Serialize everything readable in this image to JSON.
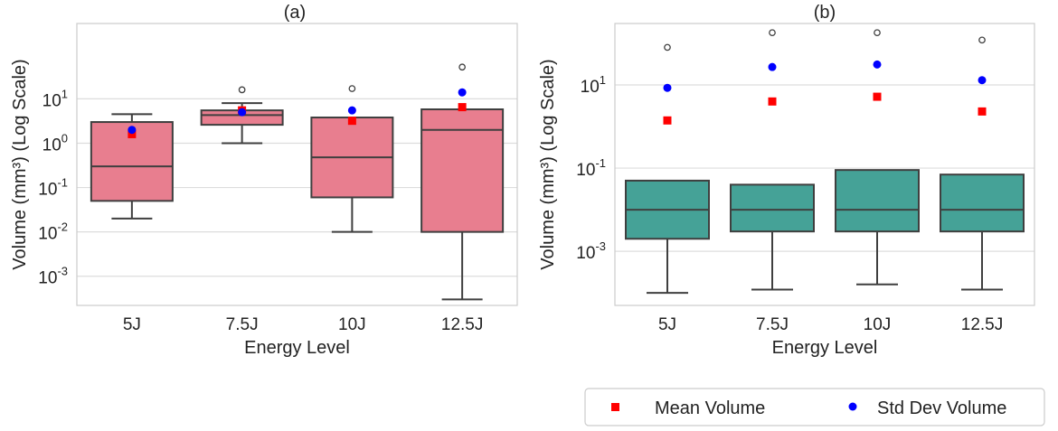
{
  "chart_data": [
    {
      "type": "box",
      "title": "(a)",
      "xlabel": "Energy Level",
      "ylabel": "Volume (mm³) (Log Scale)",
      "yscale": "log",
      "ylim": [
        0.00022,
        500
      ],
      "yticks": [
        {
          "value": 0.001,
          "base": "10",
          "exp": "-3"
        },
        {
          "value": 0.01,
          "base": "10",
          "exp": "-2"
        },
        {
          "value": 0.1,
          "base": "10",
          "exp": "-1"
        },
        {
          "value": 1,
          "base": "10",
          "exp": "0"
        },
        {
          "value": 10,
          "base": "10",
          "exp": "1"
        }
      ],
      "box_color": "#e87e8f",
      "categories": [
        "5J",
        "7.5J",
        "10J",
        "12.5J"
      ],
      "boxes": [
        {
          "whisker_low": 0.02,
          "q1": 0.05,
          "median": 0.3,
          "q3": 3.0,
          "whisker_high": 4.5,
          "outliers": []
        },
        {
          "whisker_low": 1.0,
          "q1": 2.6,
          "median": 4.3,
          "q3": 5.5,
          "whisker_high": 8.0,
          "outliers": [
            16
          ]
        },
        {
          "whisker_low": 0.01,
          "q1": 0.06,
          "median": 0.48,
          "q3": 3.8,
          "whisker_high": 3.8,
          "outliers": [
            17
          ]
        },
        {
          "whisker_low": 0.0003,
          "q1": 0.01,
          "median": 2.0,
          "q3": 5.8,
          "whisker_high": 5.8,
          "outliers": [
            52
          ]
        }
      ],
      "mean": [
        1.6,
        5.5,
        3.2,
        6.5
      ],
      "std": [
        2.0,
        5.0,
        5.5,
        14.0
      ]
    },
    {
      "type": "box",
      "title": "(b)",
      "xlabel": "Energy Level",
      "ylabel": "Volume (mm³) (Log Scale)",
      "yscale": "log",
      "ylim": [
        5e-05,
        300
      ],
      "yticks": [
        {
          "value": 0.001,
          "base": "10",
          "exp": "-3"
        },
        {
          "value": 0.1,
          "base": "10",
          "exp": "-1"
        },
        {
          "value": 10,
          "base": "10",
          "exp": "1"
        }
      ],
      "box_color": "#45a297",
      "categories": [
        "5J",
        "7.5J",
        "10J",
        "12.5J"
      ],
      "boxes": [
        {
          "whisker_low": 0.0001,
          "q1": 0.002,
          "median": 0.01,
          "q3": 0.05,
          "whisker_high": 0.05,
          "outliers": [
            80
          ]
        },
        {
          "whisker_low": 0.00012,
          "q1": 0.003,
          "median": 0.01,
          "q3": 0.04,
          "whisker_high": 0.04,
          "outliers": [
            180
          ]
        },
        {
          "whisker_low": 0.00016,
          "q1": 0.003,
          "median": 0.01,
          "q3": 0.09,
          "whisker_high": 0.09,
          "outliers": [
            180
          ]
        },
        {
          "whisker_low": 0.00012,
          "q1": 0.003,
          "median": 0.01,
          "q3": 0.07,
          "whisker_high": 0.07,
          "outliers": [
            120
          ]
        }
      ],
      "mean": [
        1.4,
        4.0,
        5.2,
        2.3
      ],
      "std": [
        8.5,
        27,
        31,
        13
      ]
    }
  ],
  "legend": {
    "placement": "bottom-right",
    "items": [
      {
        "label": "Mean Volume",
        "marker": "square",
        "color": "#ff0000"
      },
      {
        "label": "Std Dev Volume",
        "marker": "circle",
        "color": "#0000ff"
      }
    ]
  }
}
